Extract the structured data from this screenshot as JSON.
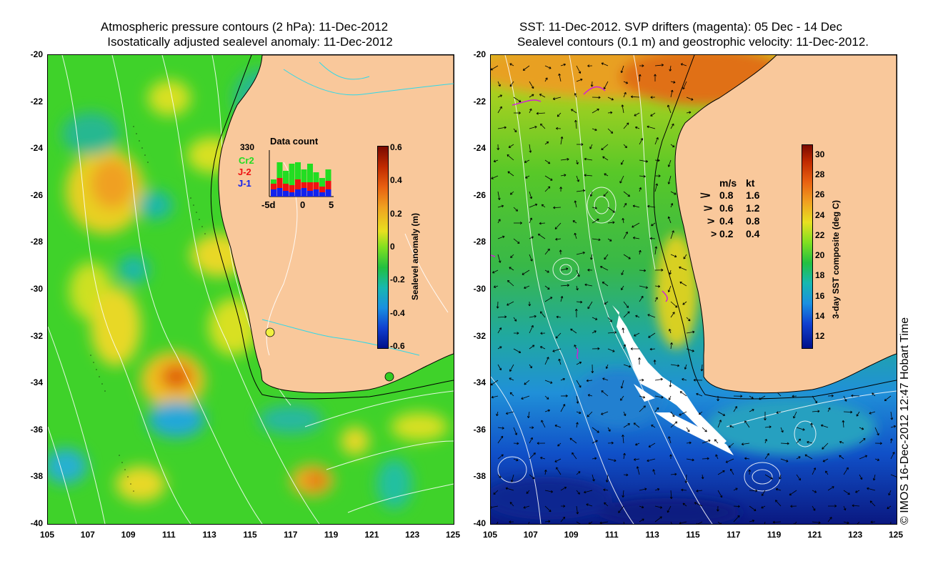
{
  "left": {
    "title_line1": "Atmospheric pressure contours (2 hPa): 11-Dec-2012",
    "title_line2": "Isostatically adjusted sealevel anomaly: 11-Dec-2012",
    "colorbar": {
      "label": "Sealevel anomaly (m)",
      "ticks": [
        "0.6",
        "0.4",
        "0.2",
        "0",
        "-0.2",
        "-0.4",
        "-0.6"
      ]
    },
    "data_count": {
      "title": "Data count",
      "max_label": "330",
      "series": [
        "Cr2",
        "J-2",
        "J-1"
      ],
      "series_colors": [
        "#22dd22",
        "#ee1111",
        "#1122ee"
      ],
      "x_ticks": [
        "-5d",
        "0",
        "5"
      ]
    }
  },
  "right": {
    "title_line1": "SST: 11-Dec-2012. SVP drifters (magenta): 05 Dec - 14 Dec",
    "title_line2": "Sealevel contours (0.1 m) and geostrophic velocity: 11-Dec-2012.",
    "colorbar": {
      "label": "3-day SST composite (deg C)",
      "ticks": [
        "30",
        "28",
        "26",
        "24",
        "22",
        "20",
        "18",
        "16",
        "14",
        "12"
      ]
    },
    "speed_legend": {
      "header_ms": "m/s",
      "header_kt": "kt",
      "rows": [
        {
          "ms": "0.8",
          "kt": "1.6"
        },
        {
          "ms": "0.6",
          "kt": "1.2"
        },
        {
          "ms": "0.4",
          "kt": "0.8"
        },
        {
          "ms": "0.2",
          "kt": "0.4"
        }
      ]
    }
  },
  "axes": {
    "lat_labels": [
      "-20",
      "-22",
      "-24",
      "-26",
      "-28",
      "-30",
      "-32",
      "-34",
      "-36",
      "-38",
      "-40"
    ],
    "lon_labels": [
      "105",
      "107",
      "109",
      "111",
      "113",
      "115",
      "117",
      "119",
      "121",
      "123",
      "125"
    ]
  },
  "credit": "© IMOS 16-Dec-2012 12:47 Hobart Time",
  "colors": {
    "land": "#f9c89b",
    "ocean_green": "#33cc22",
    "ocean_blue": "#1a7fd6"
  }
}
